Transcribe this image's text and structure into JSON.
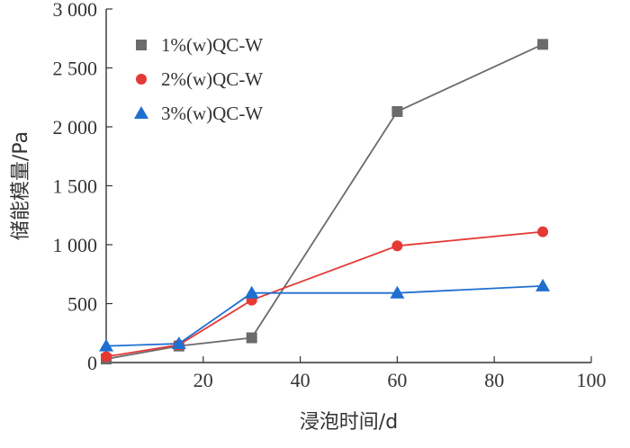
{
  "chart_data": {
    "type": "line",
    "xlabel": "浸泡时间/d",
    "ylabel": "储能模量/Pa",
    "xlim": [
      0,
      100
    ],
    "ylim": [
      0,
      3000
    ],
    "x_ticks": [
      20,
      40,
      60,
      80,
      100
    ],
    "x_tick_labels": [
      "20",
      "40",
      "60",
      "80",
      "100"
    ],
    "y_ticks": [
      0,
      500,
      1000,
      1500,
      2000,
      2500,
      3000
    ],
    "y_tick_labels": [
      "0",
      "500",
      "1 000",
      "1 500",
      "2 000",
      "2 500",
      "3 000"
    ],
    "grid": false,
    "legend_position": "top-left",
    "series": [
      {
        "name": "1%(w)QC-W",
        "marker": "square",
        "color": "#6b6b6b",
        "x": [
          0,
          15,
          30,
          60,
          90
        ],
        "y": [
          30,
          140,
          210,
          2130,
          2700
        ]
      },
      {
        "name": "2%(w)QC-W",
        "marker": "circle",
        "color": "#e53935",
        "x": [
          0,
          15,
          30,
          60,
          90
        ],
        "y": [
          50,
          150,
          530,
          990,
          1110
        ]
      },
      {
        "name": "3%(w)QC-W",
        "marker": "triangle",
        "color": "#1f6fd1",
        "x": [
          0,
          15,
          30,
          60,
          90
        ],
        "y": [
          140,
          160,
          590,
          590,
          650
        ]
      }
    ]
  }
}
